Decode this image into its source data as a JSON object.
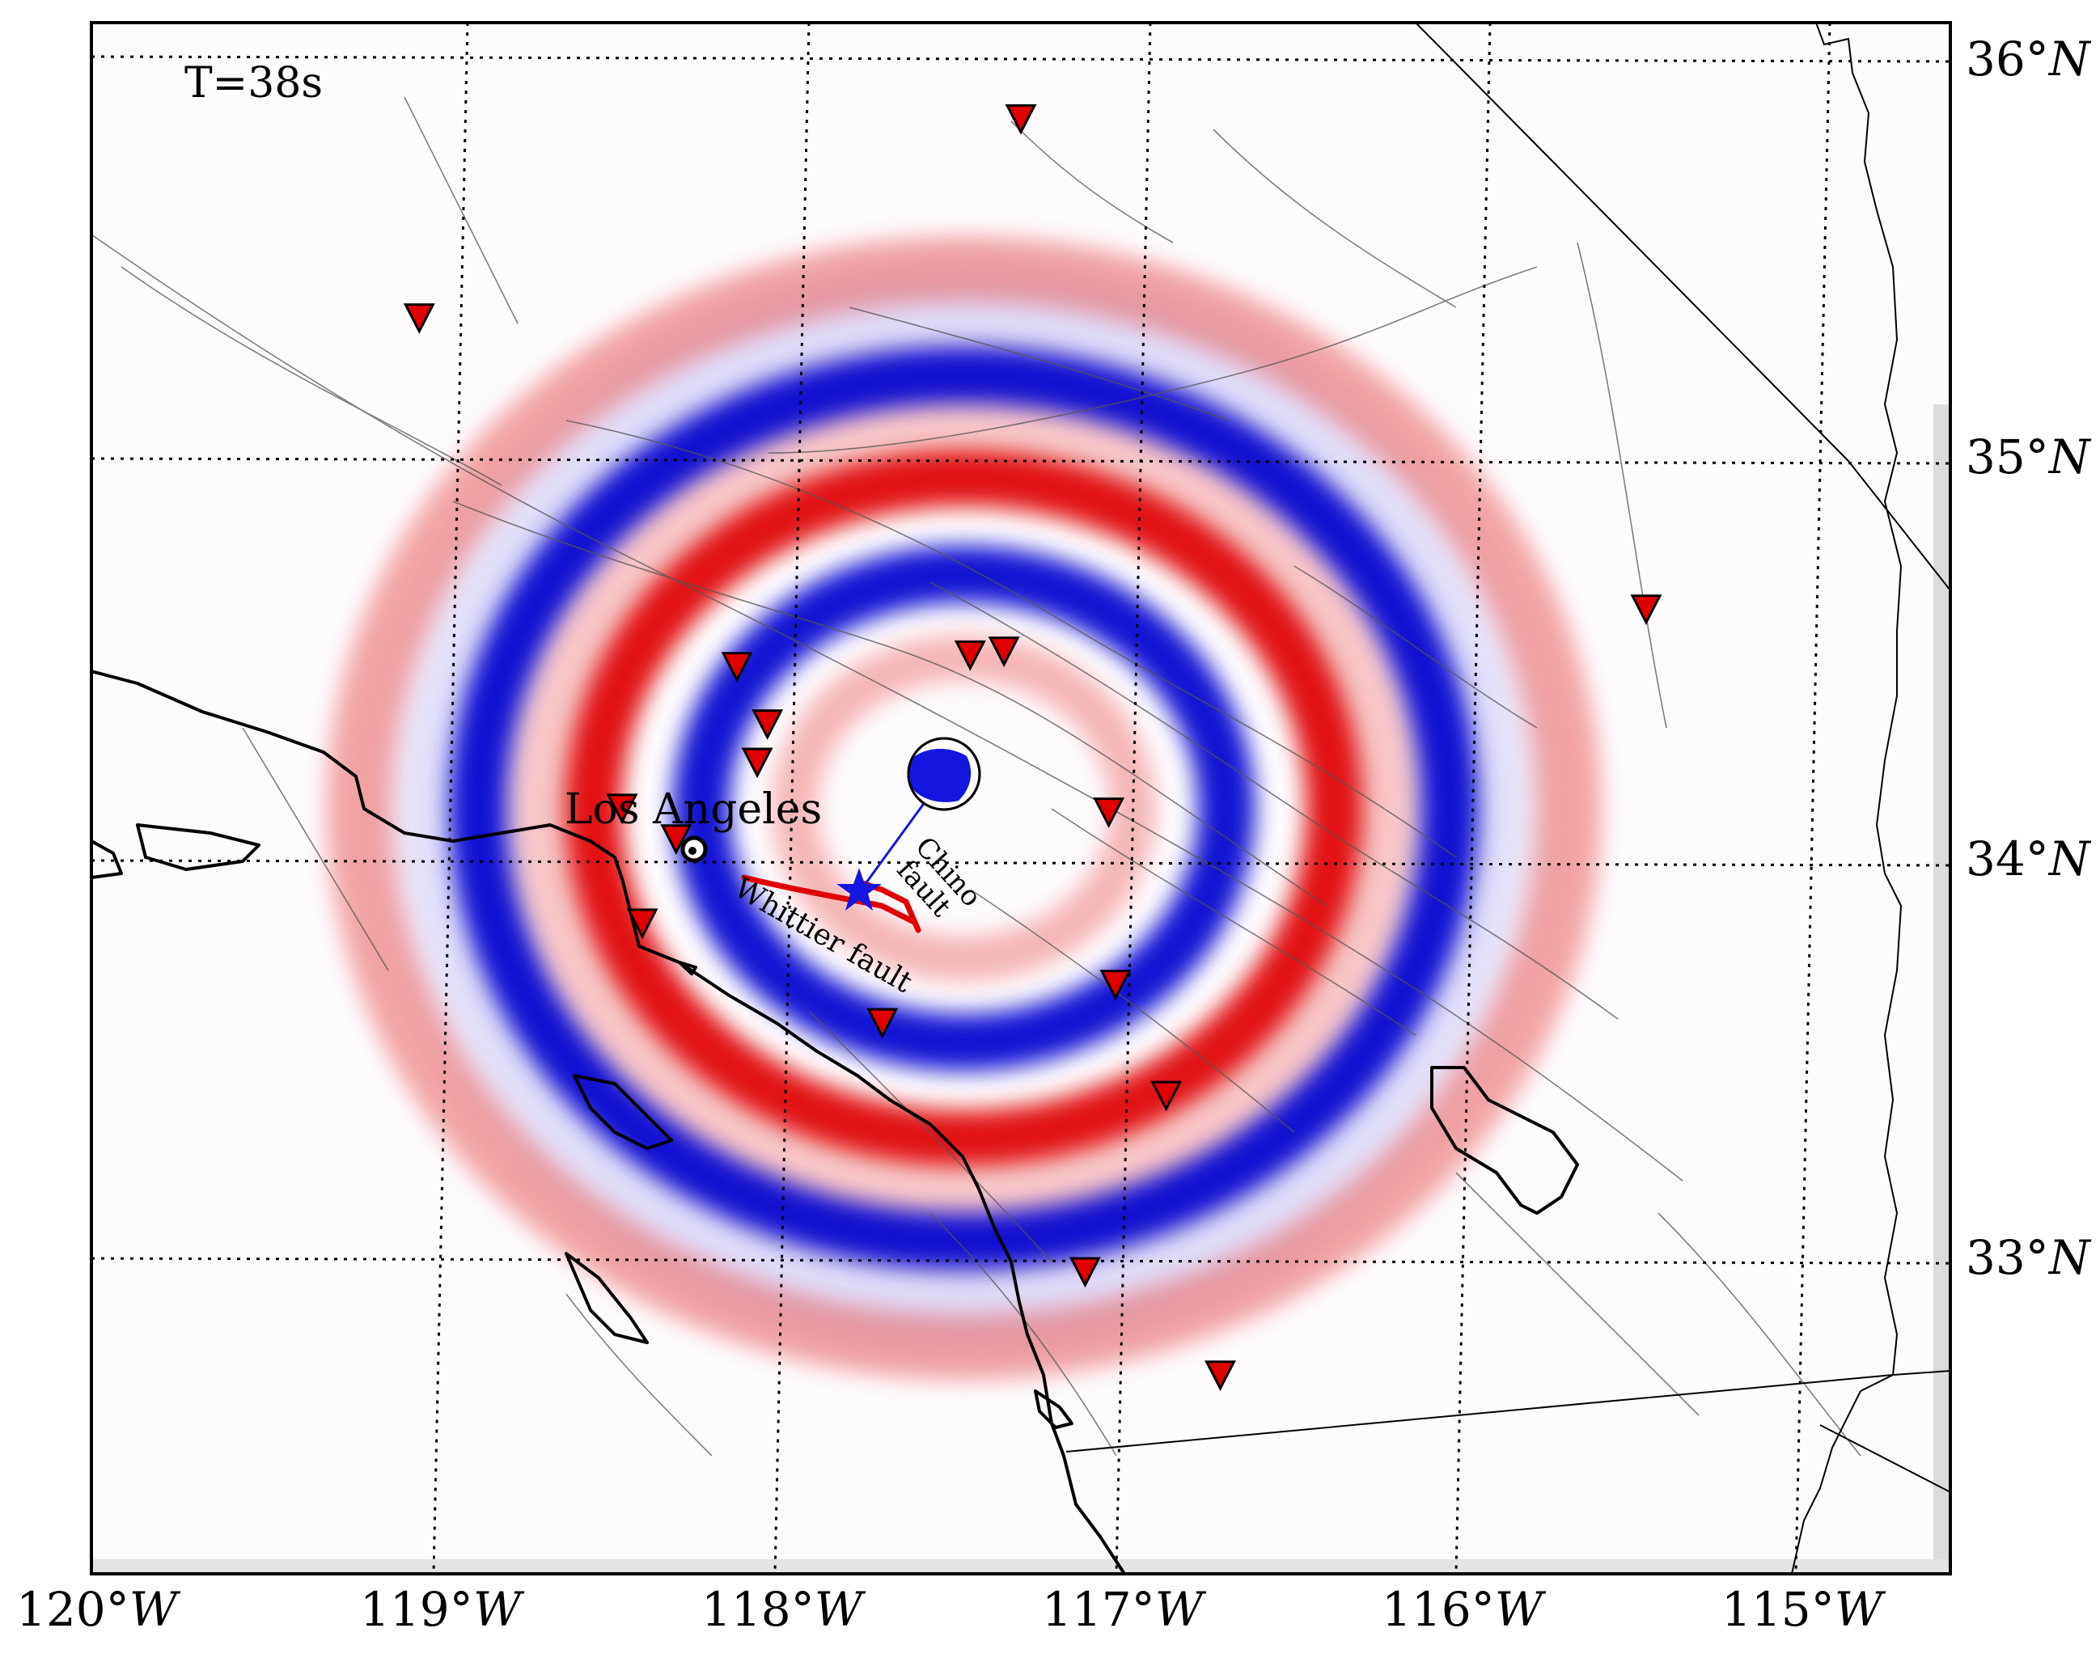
{
  "time_label": "T=38s",
  "city_label": "Los Angeles",
  "fault_labels": {
    "chino_line1": "Chino",
    "chino_line2": "fault",
    "whittier": "Whittier fault"
  },
  "lon_labels": [
    "120°",
    "119°",
    "118°",
    "117°",
    "116°",
    "115°"
  ],
  "lon_suffix": "W",
  "lat_labels": [
    "36°",
    "35°",
    "34°",
    "33°"
  ],
  "lat_suffix": "N",
  "colors": {
    "positive": "#e00000",
    "negative": "#0000d0",
    "station": "#e00000",
    "fault_label": "#e00000",
    "epicenter": "#1515e0"
  },
  "map_extent": {
    "lon_min": -120.0,
    "lon_max": -114.5,
    "lat_min": 32.1,
    "lat_max": 36.15
  },
  "epicenter": {
    "lon": -117.73,
    "lat": 33.93
  },
  "wavefield_rings": [
    {
      "radius_km": 47,
      "sign": "positive"
    },
    {
      "radius_km": 73,
      "sign": "negative"
    },
    {
      "radius_km": 103,
      "sign": "positive"
    },
    {
      "radius_km": 135,
      "sign": "negative"
    },
    {
      "radius_km": 168,
      "sign": "positive"
    }
  ],
  "stations": [
    {
      "lon": -117.25,
      "lat": 35.9
    },
    {
      "lon": -119.03,
      "lat": 35.38
    },
    {
      "lon": -115.4,
      "lat": 34.62
    },
    {
      "lon": -117.4,
      "lat": 34.5
    },
    {
      "lon": -117.3,
      "lat": 34.51
    },
    {
      "lon": -118.09,
      "lat": 34.47
    },
    {
      "lon": -118.0,
      "lat": 34.32
    },
    {
      "lon": -118.03,
      "lat": 34.22
    },
    {
      "lon": -118.43,
      "lat": 34.1
    },
    {
      "lon": -118.27,
      "lat": 34.02
    },
    {
      "lon": -116.99,
      "lat": 34.09
    },
    {
      "lon": -118.37,
      "lat": 33.8
    },
    {
      "lon": -116.97,
      "lat": 33.64
    },
    {
      "lon": -117.66,
      "lat": 33.54
    },
    {
      "lon": -116.82,
      "lat": 33.35
    },
    {
      "lon": -117.06,
      "lat": 32.89
    },
    {
      "lon": -116.66,
      "lat": 32.62
    }
  ]
}
